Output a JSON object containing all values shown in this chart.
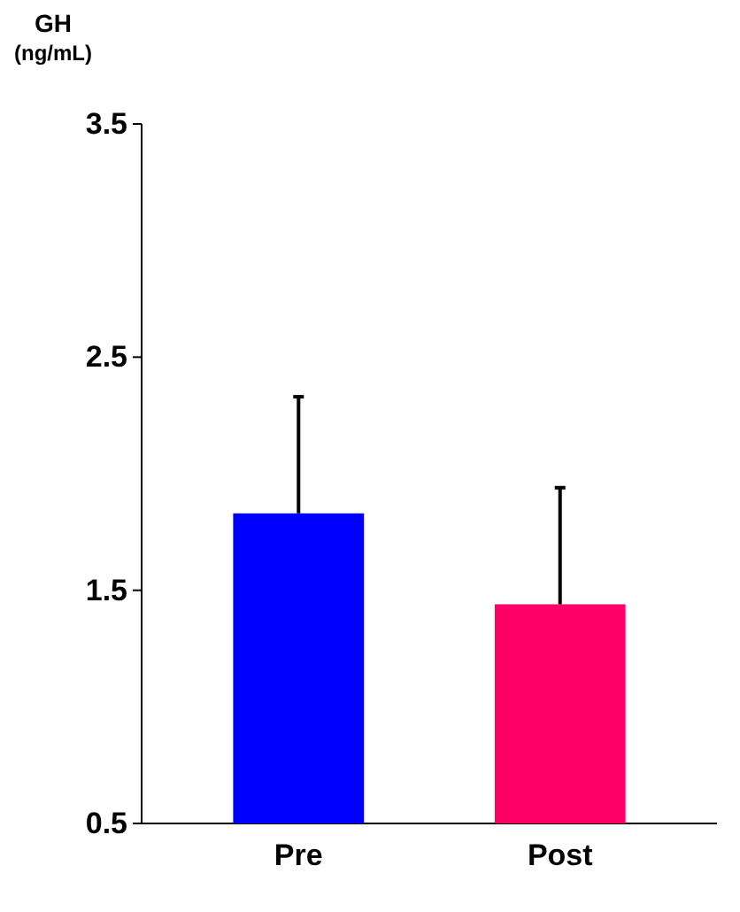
{
  "chart_data": {
    "type": "bar",
    "ylabel": "GH\n(ng/mL)",
    "categories": [
      "Pre",
      "Post"
    ],
    "values": [
      1.83,
      1.44
    ],
    "colors": [
      "#0000ff",
      "#ff0066"
    ],
    "errors": [
      [
        1.83,
        2.33
      ],
      [
        1.44,
        1.94
      ]
    ],
    "ylim": [
      0.5,
      3.5
    ],
    "yticks": [
      0.5,
      1.5,
      2.5,
      3.5
    ],
    "grid": false
  }
}
